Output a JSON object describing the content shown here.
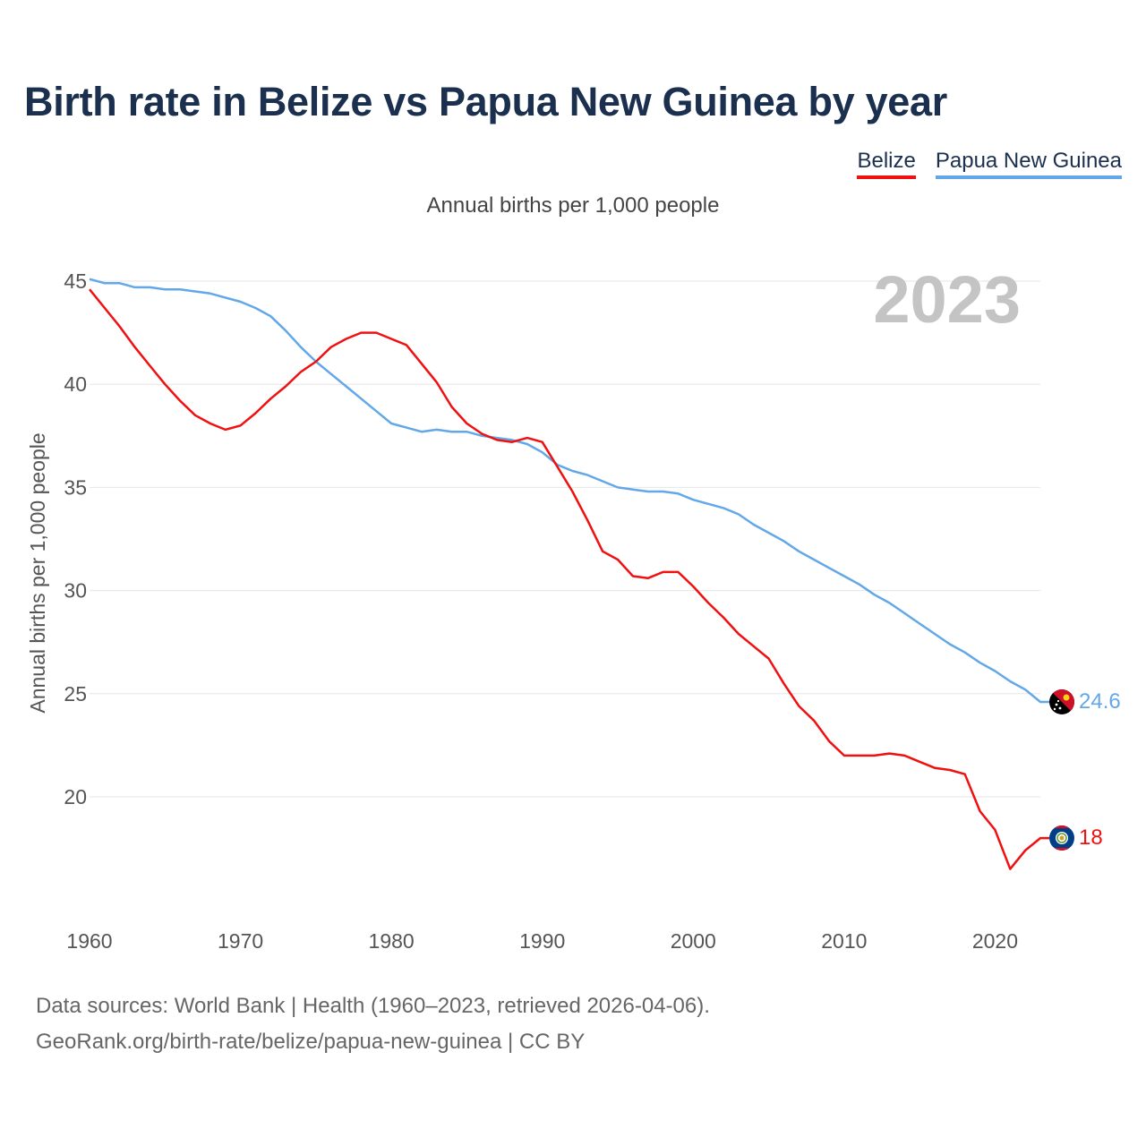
{
  "title": "Birth rate in Belize vs Papua New Guinea by year",
  "legend": {
    "belize": "Belize",
    "png": "Papua New Guinea"
  },
  "subtitle": "Annual births per 1,000 people",
  "year_label": "2023",
  "end_labels": {
    "belize": "18",
    "png": "24.6"
  },
  "footer": {
    "line1": "Data sources: World Bank | Health (1960–2023, retrieved 2026-04-06).",
    "line2": "GeoRank.org/birth-rate/belize/papua-new-guinea | CC BY"
  },
  "colors": {
    "belize": "#f01010",
    "png": "#62a8e8",
    "grid": "#e6e6e6",
    "axis_text": "#555555",
    "year": "#c4c4c4"
  },
  "chart_data": {
    "type": "line",
    "title": "Birth rate in Belize vs Papua New Guinea by year",
    "ylabel": "Annual births per 1,000 people",
    "xlabel": "",
    "xlim": [
      1960,
      2023
    ],
    "ylim": [
      15,
      45
    ],
    "yticks": [
      20,
      25,
      30,
      35,
      40,
      45
    ],
    "xticks": [
      1960,
      1970,
      1980,
      1990,
      2000,
      2010,
      2020
    ],
    "x": [
      1960,
      1961,
      1962,
      1963,
      1964,
      1965,
      1966,
      1967,
      1968,
      1969,
      1970,
      1971,
      1972,
      1973,
      1974,
      1975,
      1976,
      1977,
      1978,
      1979,
      1980,
      1981,
      1982,
      1983,
      1984,
      1985,
      1986,
      1987,
      1988,
      1989,
      1990,
      1991,
      1992,
      1993,
      1994,
      1995,
      1996,
      1997,
      1998,
      1999,
      2000,
      2001,
      2002,
      2003,
      2004,
      2005,
      2006,
      2007,
      2008,
      2009,
      2010,
      2011,
      2012,
      2013,
      2014,
      2015,
      2016,
      2017,
      2018,
      2019,
      2020,
      2021,
      2022,
      2023
    ],
    "series": [
      {
        "name": "Belize",
        "values": [
          44.6,
          43.7,
          42.8,
          41.8,
          40.9,
          40.0,
          39.2,
          38.5,
          38.1,
          37.8,
          38.0,
          38.6,
          39.3,
          39.9,
          40.6,
          41.1,
          41.8,
          42.2,
          42.5,
          42.5,
          42.2,
          41.9,
          41.0,
          40.1,
          38.9,
          38.1,
          37.6,
          37.3,
          37.2,
          37.4,
          37.2,
          36.0,
          34.8,
          33.4,
          31.9,
          31.5,
          30.7,
          30.6,
          30.9,
          30.9,
          30.2,
          29.4,
          28.7,
          27.9,
          27.3,
          26.7,
          25.5,
          24.4,
          23.7,
          22.7,
          22.0,
          22.0,
          22.0,
          22.1,
          22.0,
          21.7,
          21.4,
          21.3,
          21.1,
          19.3,
          18.4,
          16.5,
          17.4,
          18.0
        ]
      },
      {
        "name": "Papua New Guinea",
        "values": [
          45.1,
          44.9,
          44.9,
          44.7,
          44.7,
          44.6,
          44.6,
          44.5,
          44.4,
          44.2,
          44.0,
          43.7,
          43.3,
          42.6,
          41.8,
          41.1,
          40.5,
          39.9,
          39.3,
          38.7,
          38.1,
          37.9,
          37.7,
          37.8,
          37.7,
          37.7,
          37.5,
          37.4,
          37.3,
          37.1,
          36.7,
          36.1,
          35.8,
          35.6,
          35.3,
          35.0,
          34.9,
          34.8,
          34.8,
          34.7,
          34.4,
          34.2,
          34.0,
          33.7,
          33.2,
          32.8,
          32.4,
          31.9,
          31.5,
          31.1,
          30.7,
          30.3,
          29.8,
          29.4,
          28.9,
          28.4,
          27.9,
          27.4,
          27.0,
          26.5,
          26.1,
          25.6,
          25.2,
          24.6
        ]
      }
    ]
  }
}
